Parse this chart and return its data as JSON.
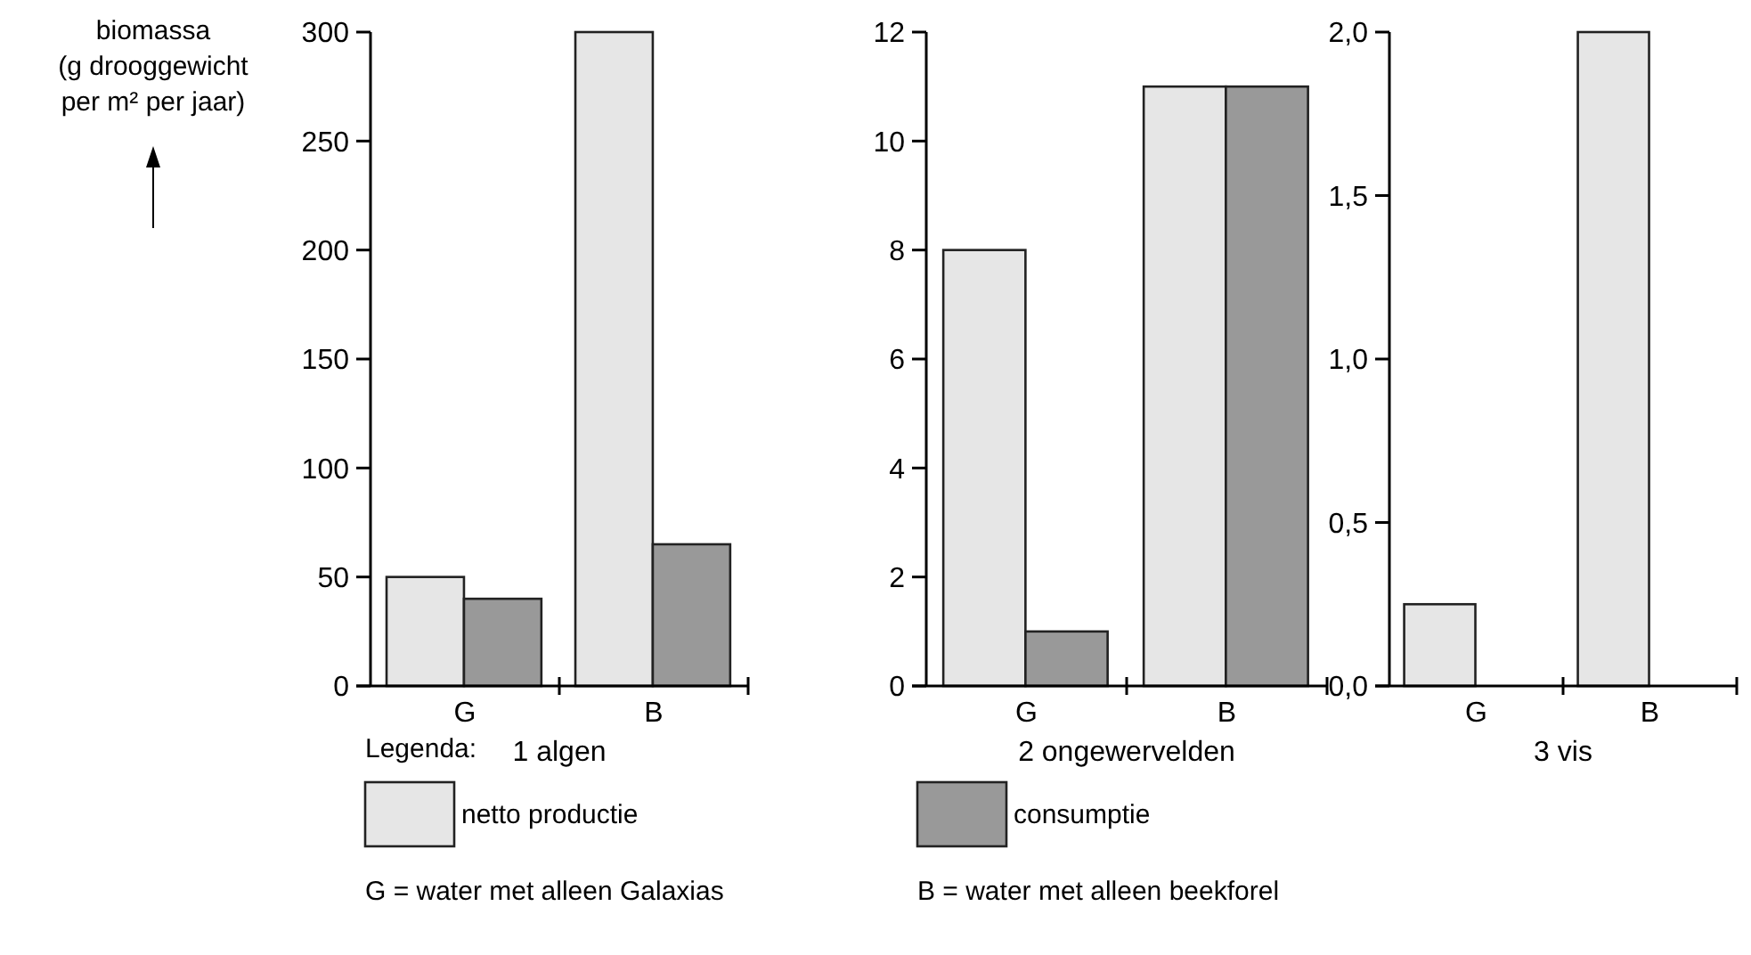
{
  "chart_data": [
    {
      "type": "bar",
      "ylabel": "biomassa\n(g drooggewicht\nper m² per jaar)",
      "xlabel": "1 algen",
      "categories": [
        "G",
        "B"
      ],
      "ylim": [
        0,
        300
      ],
      "yticks": [
        0,
        50,
        100,
        150,
        200,
        250,
        300
      ],
      "legend": "bottom",
      "legend_title": "Legenda:",
      "series": [
        {
          "name": "netto productie",
          "color": "#e6e6e6",
          "values": [
            50,
            300
          ]
        },
        {
          "name": "consumptie",
          "color": "#999999",
          "values": [
            40,
            65
          ]
        }
      ],
      "annotations": [
        "G = water met alleen Galaxias",
        "B = water met alleen beekforel"
      ]
    },
    {
      "type": "bar",
      "xlabel": "2 ongewervelden",
      "categories": [
        "G",
        "B"
      ],
      "ylim": [
        0,
        12
      ],
      "yticks": [
        0,
        2,
        4,
        6,
        8,
        10,
        12
      ],
      "series": [
        {
          "color": "#e6e6e6",
          "values": [
            8,
            11
          ]
        },
        {
          "color": "#999999",
          "values": [
            1,
            11
          ]
        }
      ]
    },
    {
      "type": "bar",
      "xlabel": "3 vis",
      "categories": [
        "G",
        "B"
      ],
      "ylim": [
        0,
        2
      ],
      "yticks": [
        {
          "value": 0,
          "label": "0,0"
        },
        {
          "value": 0.5,
          "label": "0,5"
        },
        {
          "value": 1,
          "label": "1,0"
        },
        {
          "value": 1.5,
          "label": "1,5"
        },
        {
          "value": 2,
          "label": "2,0"
        }
      ],
      "series": [
        {
          "color": "#e6e6e6",
          "values": [
            0.25,
            2
          ]
        },
        {
          "color": "#999999",
          "values": [
            0,
            0
          ]
        }
      ]
    }
  ]
}
